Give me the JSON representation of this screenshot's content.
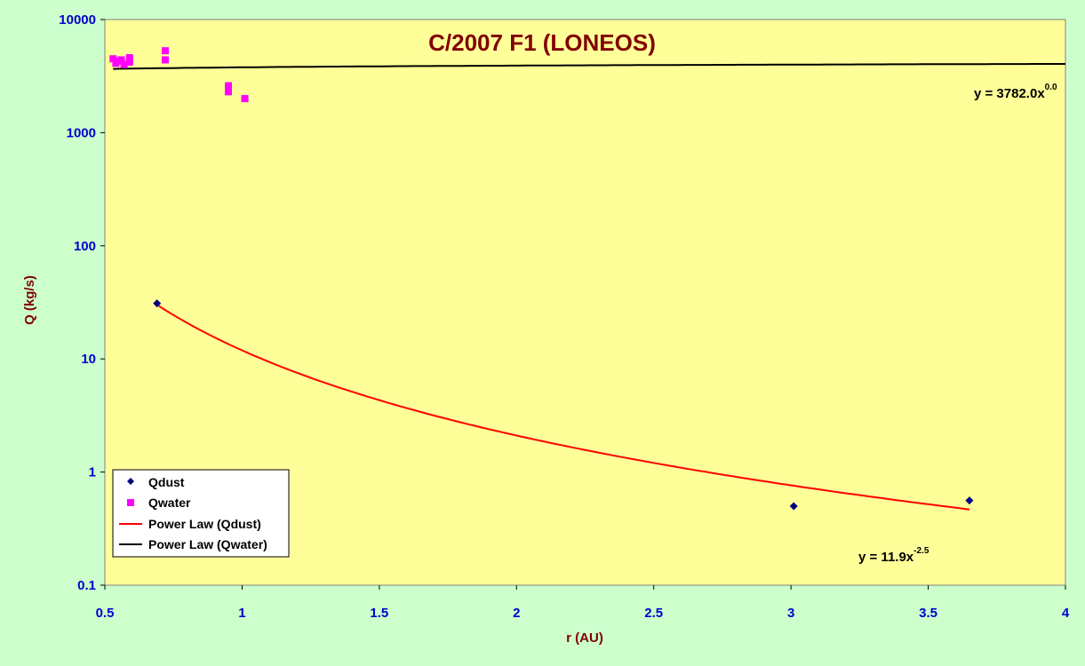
{
  "chart_data": {
    "type": "scatter",
    "title": "C/2007 F1 (LONEOS)",
    "xlabel": "r (AU)",
    "ylabel": "Q (kg/s)",
    "xlim": [
      0.5,
      4
    ],
    "ylim": [
      0.1,
      10000
    ],
    "yscale": "log",
    "x_ticks": [
      "0.5",
      "1",
      "1.5",
      "2",
      "2.5",
      "3",
      "3.5",
      "4"
    ],
    "y_ticks": [
      "0.1",
      "1",
      "10",
      "100",
      "1000",
      "10000"
    ],
    "grid": false,
    "legend_position": "bottom-left",
    "series": [
      {
        "name": "Qdust",
        "marker": "diamond",
        "color": "#000080",
        "points": [
          [
            0.69,
            31
          ],
          [
            3.01,
            0.5
          ],
          [
            3.65,
            0.56
          ]
        ]
      },
      {
        "name": "Qwater",
        "marker": "square",
        "color": "#ff00ff",
        "points": [
          [
            0.53,
            4500
          ],
          [
            0.54,
            4100
          ],
          [
            0.55,
            4300
          ],
          [
            0.56,
            4400
          ],
          [
            0.57,
            4000
          ],
          [
            0.59,
            4600
          ],
          [
            0.59,
            4200
          ],
          [
            0.72,
            5300
          ],
          [
            0.72,
            4400
          ],
          [
            0.95,
            2600
          ],
          [
            0.95,
            2300
          ],
          [
            1.01,
            2000
          ]
        ]
      }
    ],
    "trendlines": [
      {
        "name": "Power Law (Qdust)",
        "color": "#ff0000",
        "a": 11.9,
        "b": -2.5,
        "x_range": [
          0.69,
          3.65
        ],
        "equation_label": "y = 11.9x",
        "equation_exponent": "-2.5"
      },
      {
        "name": "Power Law (Qwater)",
        "color": "#000000",
        "a": 3782.0,
        "b": 0.05,
        "x_range": [
          0.53,
          4
        ],
        "equation_label": "y = 3782.0x",
        "equation_exponent": "0.0"
      }
    ],
    "legend": [
      "Qdust",
      "Qwater",
      "Power Law (Qdust)",
      "Power Law (Qwater)"
    ],
    "colors": {
      "background": "#ccffcc",
      "plot_area": "#ffff99",
      "tick_labels": "#0000cc",
      "title": "#800000"
    }
  }
}
